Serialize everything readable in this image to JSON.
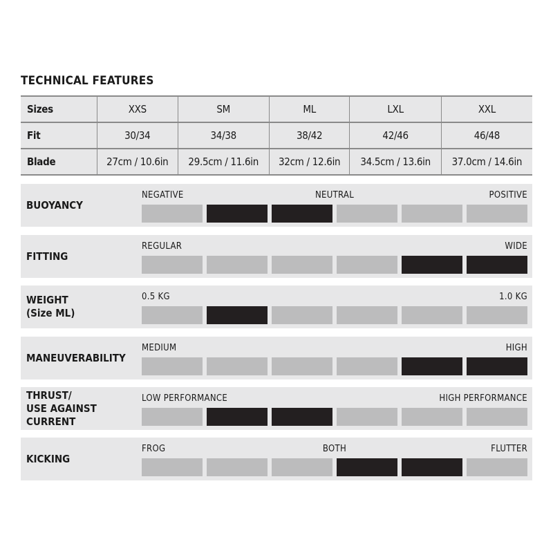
{
  "title": "TECHNICAL FEATURES",
  "table": {
    "rows": [
      {
        "label": "Sizes",
        "cells": [
          "XXS",
          "SM",
          "ML",
          "LXL",
          "XXL"
        ]
      },
      {
        "label": "Fit",
        "cells": [
          "30/34",
          "34/38",
          "38/42",
          "42/46",
          "46/48"
        ]
      },
      {
        "label": "Blade",
        "cells": [
          "27cm / 10.6in",
          "29.5cm / 11.6in",
          "32cm / 12.6in",
          "34.5cm / 13.6in",
          "37.0cm / 14.6in"
        ]
      }
    ]
  },
  "colors": {
    "filled": "#231f20",
    "empty": "#bcbcbd",
    "panel": "#e7e7e8"
  },
  "ratings": [
    {
      "label": "BUOYANCY",
      "left": "NEGATIVE",
      "mid": "NEUTRAL",
      "right": "POSITIVE",
      "filled": [
        false,
        true,
        true,
        false,
        false,
        false
      ]
    },
    {
      "label": "FITTING",
      "left": "REGULAR",
      "mid": "",
      "right": "WIDE",
      "filled": [
        false,
        false,
        false,
        false,
        true,
        true
      ]
    },
    {
      "label": "WEIGHT\n(Size ML)",
      "left": "0.5 KG",
      "mid": "",
      "right": "1.0 KG",
      "filled": [
        false,
        true,
        false,
        false,
        false,
        false
      ]
    },
    {
      "label": "MANEUVERABILITY",
      "left": "MEDIUM",
      "mid": "",
      "right": "HIGH",
      "filled": [
        false,
        false,
        false,
        false,
        true,
        true
      ]
    },
    {
      "label": "THRUST/\nUSE AGAINST\nCURRENT",
      "left": "LOW PERFORMANCE",
      "mid": "",
      "right": "HIGH PERFORMANCE",
      "filled": [
        false,
        true,
        true,
        false,
        false,
        false
      ]
    },
    {
      "label": "KICKING",
      "left": "FROG",
      "mid": "BOTH",
      "right": "FLUTTER",
      "filled": [
        false,
        false,
        false,
        true,
        true,
        false
      ]
    }
  ]
}
